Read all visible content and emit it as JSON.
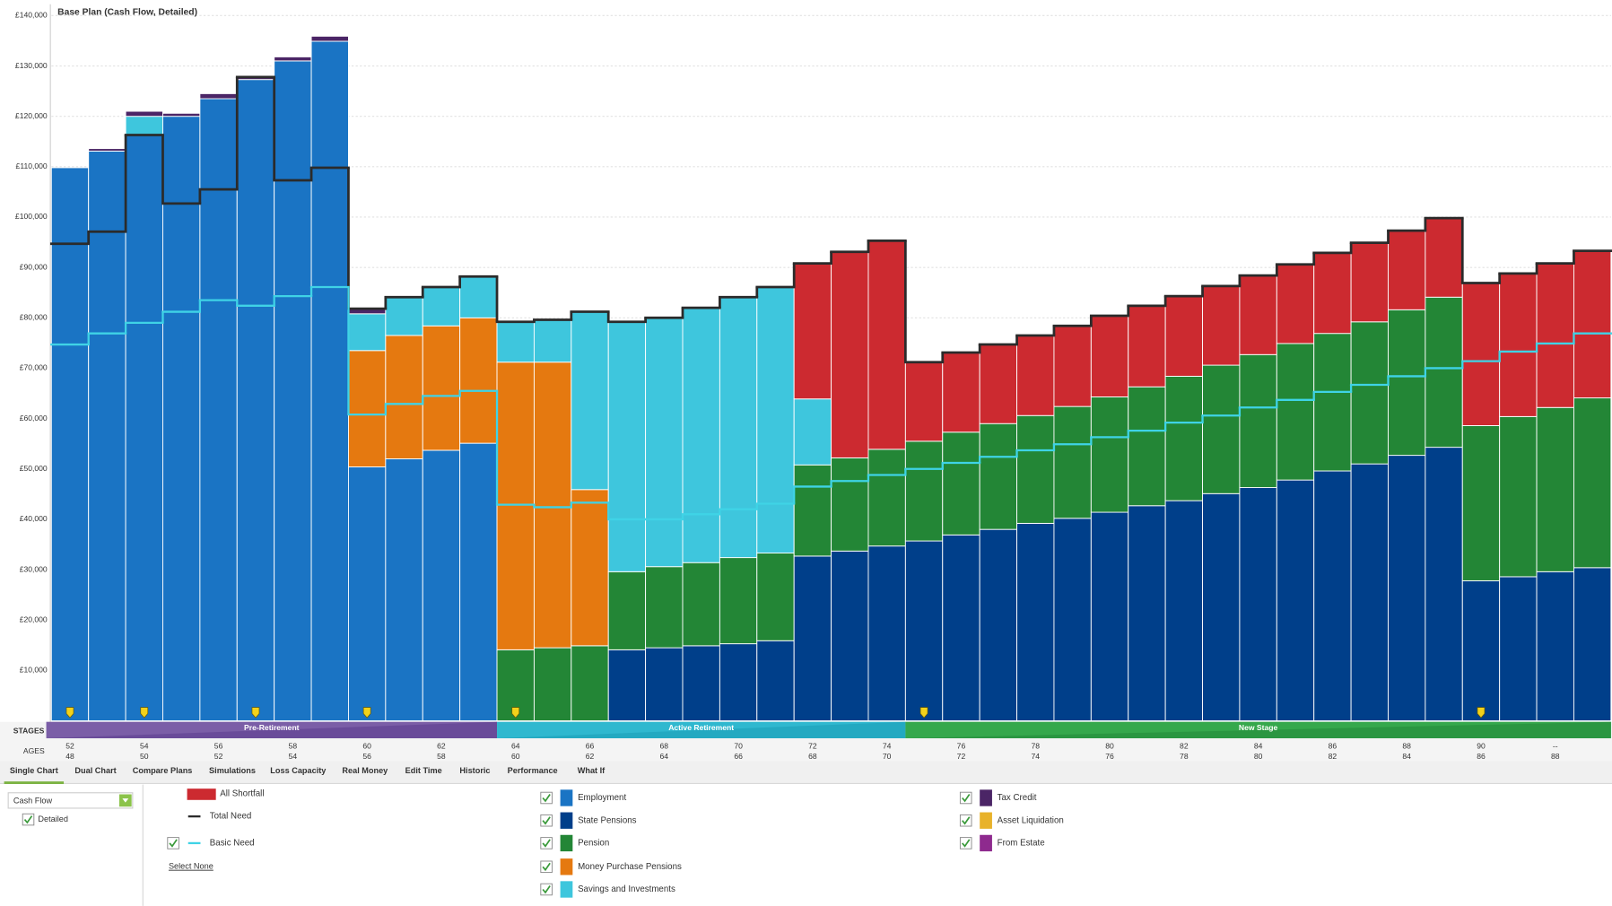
{
  "chart_data": {
    "type": "stacked-bar",
    "title": "Base Plan  (Cash Flow, Detailed)",
    "categories": [
      "52",
      null,
      "54",
      null,
      "56",
      null,
      "58",
      null,
      "60",
      null,
      "62",
      null,
      "64",
      null,
      "66",
      null,
      "68",
      null,
      "70",
      null,
      "72",
      null,
      "74",
      null,
      "76",
      null,
      "78",
      null,
      "80",
      null,
      "82",
      null,
      "84",
      null,
      "86",
      null,
      "88",
      null,
      "90",
      null,
      "--",
      null
    ],
    "partner_ages": [
      "48",
      null,
      "50",
      null,
      "52",
      null,
      "54",
      null,
      "56",
      null,
      "58",
      null,
      "60",
      null,
      "62",
      null,
      "64",
      null,
      "66",
      null,
      "68",
      null,
      "70",
      null,
      "72",
      null,
      "74",
      null,
      "76",
      null,
      "78",
      null,
      "80",
      null,
      "82",
      null,
      "84",
      null,
      "86",
      null,
      "88",
      null
    ],
    "stages": [
      "Pre-Retirement",
      "Active Retirement",
      "New Stage"
    ],
    "ylim": [
      0,
      140000
    ],
    "yticks": [
      {
        "value": 10000,
        "label": "£10,000"
      },
      {
        "value": 20000,
        "label": "£20,000"
      },
      {
        "value": 30000,
        "label": "£30,000"
      },
      {
        "value": 40000,
        "label": "£40,000"
      },
      {
        "value": 50000,
        "label": "£50,000"
      },
      {
        "value": 60000,
        "label": "£60,000"
      },
      {
        "value": 70000,
        "label": "£70,000"
      },
      {
        "value": 80000,
        "label": "£80,000"
      },
      {
        "value": 90000,
        "label": "£90,000"
      },
      {
        "value": 100000,
        "label": "£100,000"
      },
      {
        "value": 110000,
        "label": "£110,000"
      },
      {
        "value": 120000,
        "label": "£120,000"
      },
      {
        "value": 130000,
        "label": "£130,000"
      },
      {
        "value": 140000,
        "label": "£140,000"
      }
    ],
    "grid": true,
    "series": [
      {
        "name": "Employment",
        "color": "#1a74c4",
        "values": [
          109800,
          113100,
          116300,
          120000,
          123500,
          127300,
          131000,
          134900,
          50400,
          52000,
          53700,
          55100,
          null,
          null,
          null,
          null,
          null,
          null,
          null,
          null,
          null,
          null,
          null,
          null,
          null,
          null,
          null,
          null,
          null,
          null,
          null,
          null,
          null,
          null,
          null,
          null,
          null,
          null,
          null,
          null,
          null,
          null
        ]
      },
      {
        "name": "State Pensions",
        "color": "#003f8a",
        "values": [
          null,
          null,
          null,
          null,
          null,
          null,
          null,
          null,
          null,
          null,
          null,
          null,
          null,
          null,
          null,
          14100,
          14500,
          14900,
          15300,
          15900,
          32700,
          33700,
          34700,
          35700,
          36900,
          38000,
          39200,
          40200,
          41400,
          42700,
          43700,
          45100,
          46300,
          47800,
          49600,
          51000,
          52700,
          54300,
          27800,
          28600,
          29600,
          30400
        ]
      },
      {
        "name": "Pension",
        "color": "#238636",
        "values": [
          null,
          null,
          null,
          null,
          null,
          null,
          null,
          null,
          null,
          null,
          null,
          null,
          14100,
          14500,
          14900,
          15500,
          16100,
          16500,
          17100,
          17400,
          18100,
          18500,
          19200,
          19800,
          20400,
          21000,
          21400,
          22200,
          22900,
          23600,
          24700,
          25500,
          26400,
          27100,
          27300,
          28200,
          28900,
          29800,
          30800,
          31800,
          32600,
          33700
        ]
      },
      {
        "name": "Money Purchase Pensions",
        "color": "#e57910",
        "values": [
          null,
          null,
          null,
          null,
          null,
          null,
          null,
          null,
          23100,
          24500,
          24700,
          24900,
          57100,
          56700,
          31000,
          null,
          null,
          null,
          null,
          null,
          null,
          null,
          null,
          null,
          null,
          null,
          null,
          null,
          null,
          null,
          null,
          null,
          null,
          null,
          null,
          null,
          null,
          null,
          null,
          null,
          null,
          null
        ]
      },
      {
        "name": "Savings and Investments",
        "color": "#3ec6dd",
        "values": [
          null,
          null,
          3700,
          null,
          null,
          null,
          null,
          null,
          7300,
          7600,
          7700,
          8200,
          8000,
          8400,
          35300,
          49600,
          49400,
          50600,
          51700,
          52800,
          13100,
          null,
          null,
          null,
          null,
          null,
          null,
          null,
          null,
          null,
          null,
          null,
          null,
          null,
          null,
          null,
          null,
          null,
          null,
          null,
          null,
          null
        ]
      },
      {
        "name": "Tax Credit",
        "color": "#4b2566",
        "values": [
          null,
          500,
          1000,
          600,
          1000,
          800,
          800,
          1000,
          1000,
          null,
          null,
          null,
          null,
          null,
          null,
          null,
          null,
          null,
          null,
          null,
          null,
          null,
          null,
          null,
          null,
          null,
          null,
          null,
          null,
          null,
          null,
          null,
          null,
          null,
          null,
          null,
          null,
          null,
          null,
          null,
          null,
          null
        ]
      },
      {
        "name": "Asset Liquidation",
        "color": "#e8b22a",
        "values": [
          null,
          null,
          null,
          null,
          null,
          null,
          null,
          null,
          null,
          null,
          null,
          null,
          null,
          null,
          null,
          null,
          null,
          null,
          null,
          null,
          null,
          null,
          null,
          null,
          null,
          null,
          null,
          null,
          null,
          null,
          null,
          null,
          null,
          null,
          null,
          null,
          null,
          null,
          null,
          null,
          null,
          null
        ]
      },
      {
        "name": "From Estate",
        "color": "#8e2a8e",
        "values": [
          null,
          null,
          null,
          null,
          null,
          null,
          null,
          null,
          null,
          null,
          null,
          null,
          null,
          null,
          null,
          null,
          null,
          null,
          null,
          null,
          null,
          null,
          null,
          null,
          null,
          null,
          null,
          null,
          null,
          null,
          null,
          null,
          null,
          null,
          null,
          null,
          null,
          null,
          null,
          null,
          null,
          null
        ]
      },
      {
        "name": "All Shortfall",
        "color": "#cc2a30",
        "values": [
          null,
          null,
          null,
          null,
          null,
          null,
          null,
          null,
          null,
          null,
          null,
          null,
          null,
          null,
          null,
          null,
          null,
          null,
          null,
          null,
          26900,
          40900,
          41400,
          15700,
          15800,
          15700,
          15900,
          16000,
          16100,
          16100,
          15900,
          15700,
          15700,
          15700,
          16000,
          15700,
          15700,
          15700,
          28300,
          28400,
          28600,
          29200
        ]
      }
    ],
    "lines": [
      {
        "name": "Total Need",
        "color": "#2b2b2b",
        "values": [
          94700,
          97100,
          116300,
          102700,
          105500,
          127800,
          107300,
          109800,
          81800,
          84100,
          86100,
          88200,
          79200,
          79600,
          81200,
          79200,
          80000,
          82000,
          84100,
          86100,
          90800,
          93100,
          95300,
          71200,
          73100,
          74700,
          76500,
          78400,
          80400,
          82400,
          84300,
          86300,
          88400,
          90600,
          92900,
          94900,
          97300,
          99800,
          86900,
          88800,
          90800,
          93300
        ]
      },
      {
        "name": "Basic Need",
        "color": "#3fd3e6",
        "values": [
          74700,
          76900,
          79000,
          81200,
          83500,
          82400,
          84300,
          86100,
          60800,
          62900,
          64500,
          65500,
          42900,
          42400,
          43300,
          40000,
          40000,
          41000,
          42000,
          43100,
          46500,
          47600,
          48800,
          50000,
          51200,
          52400,
          53700,
          54900,
          56300,
          57600,
          59200,
          60600,
          62200,
          63700,
          65300,
          66700,
          68400,
          70000,
          71400,
          73300,
          74900,
          76900
        ]
      }
    ]
  },
  "ui": {
    "stages_label": "STAGES",
    "ages_label": "AGES",
    "tabs": [
      "Single Chart",
      "Dual Chart",
      "Compare Plans",
      "Simulations",
      "Loss Capacity",
      "Real Money",
      "Edit Time",
      "Historic",
      "Performance",
      "What If"
    ],
    "view_select": "Cash Flow",
    "detailed": "Detailed",
    "select_none": "Select None"
  }
}
